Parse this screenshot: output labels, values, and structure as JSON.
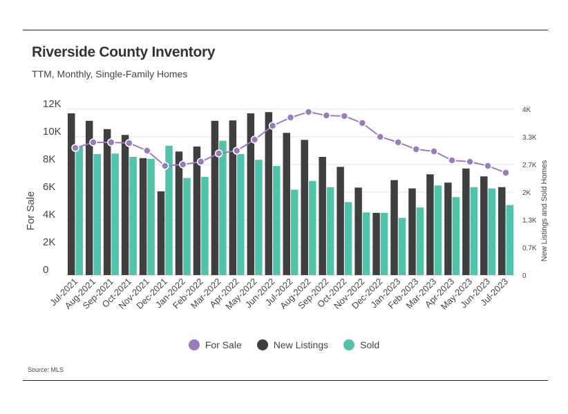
{
  "chart_data": {
    "type": "bar",
    "title": "Riverside County Inventory",
    "subtitle": "TTM, Monthly, Single-Family Homes",
    "source": "Source: MLS",
    "categories": [
      "Jul-2021",
      "Aug-2021",
      "Sep-2021",
      "Oct-2021",
      "Nov-2021",
      "Dec-2021",
      "Jan-2022",
      "Feb-2022",
      "Mar-2022",
      "Apr-2022",
      "May-2022",
      "Jun-2022",
      "Jul-2022",
      "Aug-2022",
      "Sep-2022",
      "Oct-2022",
      "Nov-2022",
      "Dec-2022",
      "Jan-2023",
      "Feb-2023",
      "Mar-2023",
      "Apr-2023",
      "May-2023",
      "Jun-2023",
      "Jul-2023"
    ],
    "ylabel_left": "For Sale",
    "ylabel_right": "New Listings and Sold Homes",
    "left_axis": {
      "ylim": [
        0,
        12000
      ],
      "ticks": [
        0,
        2000,
        4000,
        6000,
        8000,
        10000,
        12000
      ],
      "tick_labels": [
        "0",
        "2K",
        "4K",
        "6K",
        "8K",
        "10K",
        "12K"
      ]
    },
    "right_axis": {
      "ylim": [
        0,
        4000
      ],
      "ticks": [
        0,
        666.7,
        1333.3,
        2000,
        2666.7,
        3333.3,
        4000
      ],
      "tick_labels": [
        "0",
        "0.7K",
        "1.3K",
        "2K",
        "2.7K",
        "3.3K",
        "4K"
      ]
    },
    "grid": true,
    "legend_position": "bottom",
    "series": [
      {
        "name": "For Sale",
        "type": "line",
        "axis": "left",
        "color": "#9b7bc0",
        "values": [
          9200,
          9600,
          9600,
          9550,
          9000,
          7900,
          8000,
          8200,
          8800,
          9000,
          9800,
          10800,
          11400,
          11800,
          11550,
          11500,
          11000,
          10000,
          9600,
          9100,
          8950,
          8300,
          8200,
          7900,
          7400
        ]
      },
      {
        "name": "New Listings",
        "type": "bar",
        "axis": "right",
        "color": "#3f3f3f",
        "values": [
          3900,
          3720,
          3520,
          3380,
          2820,
          2020,
          2980,
          3100,
          3720,
          3730,
          3900,
          3930,
          3430,
          3260,
          2850,
          2610,
          2110,
          1500,
          2290,
          2090,
          2430,
          2230,
          2570,
          2380,
          2120
        ]
      },
      {
        "name": "Sold",
        "type": "bar",
        "axis": "right",
        "color": "#4ec4ac",
        "values": [
          3100,
          2920,
          2930,
          2850,
          2800,
          3120,
          2340,
          2370,
          3240,
          2920,
          2780,
          2630,
          2060,
          2270,
          2120,
          1760,
          1510,
          1500,
          1380,
          1630,
          2160,
          1880,
          2120,
          2090,
          1690
        ]
      }
    ]
  },
  "legend": {
    "for_sale": "For Sale",
    "new_listings": "New Listings",
    "sold": "Sold"
  }
}
